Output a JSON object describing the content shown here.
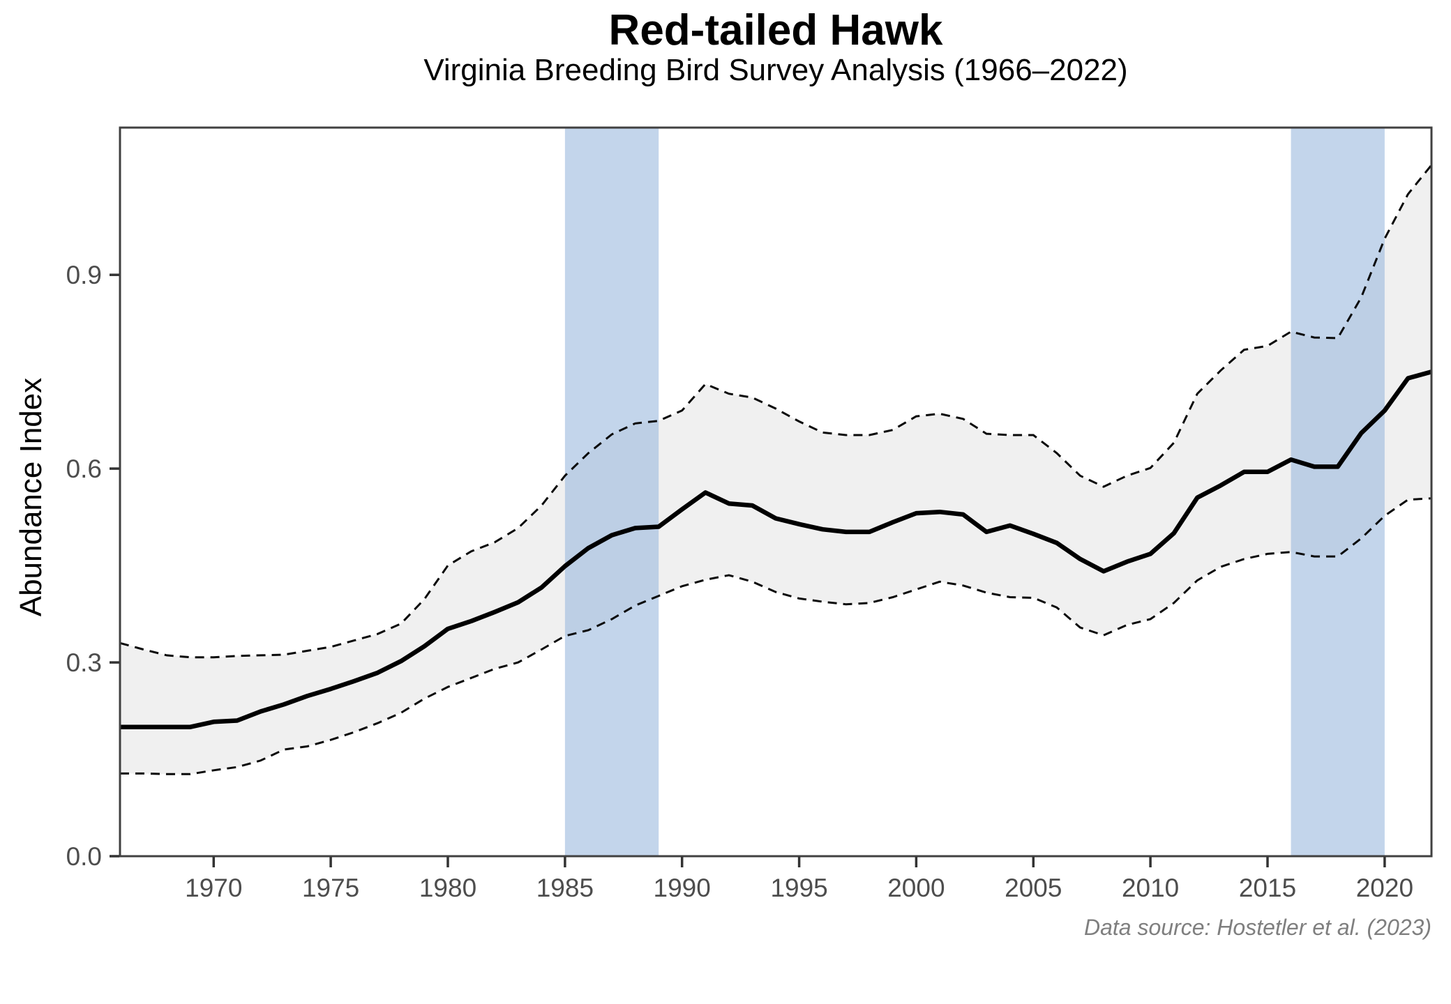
{
  "chart": {
    "title": "Red-tailed Hawk",
    "subtitle": "Virginia Breeding Bird Survey Analysis (1966–2022)",
    "y_axis_label": "Abundance Index",
    "caption": "Data source: Hostetler et al. (2023)"
  },
  "chart_data": {
    "type": "line",
    "title": "Red-tailed Hawk",
    "subtitle": "Virginia Breeding Bird Survey Analysis (1966–2022)",
    "xlabel": "",
    "ylabel": "Abundance Index",
    "xlim": [
      1966,
      2022
    ],
    "ylim": [
      0,
      1.128
    ],
    "grid": "off",
    "legend": "none",
    "x_ticks": [
      1970,
      1975,
      1980,
      1985,
      1990,
      1995,
      2000,
      2005,
      2010,
      2015,
      2020
    ],
    "y_ticks": [
      0.0,
      0.3,
      0.6,
      0.9
    ],
    "y_tick_labels": [
      "0.0",
      "0.3",
      "0.6",
      "0.9"
    ],
    "x": [
      1966,
      1967,
      1968,
      1969,
      1970,
      1971,
      1972,
      1973,
      1974,
      1975,
      1976,
      1977,
      1978,
      1979,
      1980,
      1981,
      1982,
      1983,
      1984,
      1985,
      1986,
      1987,
      1988,
      1989,
      1990,
      1991,
      1992,
      1993,
      1994,
      1995,
      1996,
      1997,
      1998,
      1999,
      2000,
      2001,
      2002,
      2003,
      2004,
      2005,
      2006,
      2007,
      2008,
      2009,
      2010,
      2011,
      2012,
      2013,
      2014,
      2015,
      2016,
      2017,
      2018,
      2019,
      2020,
      2021,
      2022
    ],
    "series": [
      {
        "name": "abundance_index_mean",
        "style": "solid",
        "values": [
          0.2,
          0.2,
          0.2,
          0.2,
          0.208,
          0.21,
          0.224,
          0.235,
          0.248,
          0.259,
          0.271,
          0.284,
          0.302,
          0.325,
          0.352,
          0.364,
          0.378,
          0.393,
          0.416,
          0.449,
          0.477,
          0.497,
          0.508,
          0.51,
          0.537,
          0.563,
          0.546,
          0.543,
          0.523,
          0.514,
          0.506,
          0.502,
          0.502,
          0.517,
          0.531,
          0.533,
          0.529,
          0.502,
          0.512,
          0.499,
          0.485,
          0.46,
          0.441,
          0.456,
          0.468,
          0.5,
          0.555,
          0.574,
          0.595,
          0.595,
          0.614,
          0.603,
          0.603,
          0.655,
          0.69,
          0.74,
          0.75
        ]
      },
      {
        "name": "ci_lower",
        "style": "dashed",
        "values": [
          0.128,
          0.128,
          0.127,
          0.127,
          0.133,
          0.138,
          0.148,
          0.165,
          0.17,
          0.18,
          0.192,
          0.206,
          0.222,
          0.244,
          0.262,
          0.276,
          0.29,
          0.3,
          0.32,
          0.341,
          0.35,
          0.367,
          0.388,
          0.403,
          0.418,
          0.428,
          0.435,
          0.425,
          0.409,
          0.399,
          0.394,
          0.39,
          0.392,
          0.401,
          0.413,
          0.425,
          0.419,
          0.408,
          0.401,
          0.4,
          0.385,
          0.354,
          0.342,
          0.358,
          0.367,
          0.392,
          0.427,
          0.448,
          0.46,
          0.468,
          0.471,
          0.464,
          0.464,
          0.492,
          0.527,
          0.552,
          0.554
        ]
      },
      {
        "name": "ci_upper",
        "style": "dashed",
        "values": [
          0.33,
          0.32,
          0.311,
          0.308,
          0.308,
          0.31,
          0.311,
          0.312,
          0.318,
          0.324,
          0.334,
          0.344,
          0.36,
          0.398,
          0.45,
          0.472,
          0.486,
          0.508,
          0.543,
          0.589,
          0.624,
          0.653,
          0.67,
          0.674,
          0.69,
          0.731,
          0.716,
          0.71,
          0.693,
          0.673,
          0.656,
          0.652,
          0.652,
          0.66,
          0.681,
          0.685,
          0.677,
          0.654,
          0.652,
          0.652,
          0.624,
          0.589,
          0.572,
          0.589,
          0.601,
          0.64,
          0.716,
          0.752,
          0.784,
          0.79,
          0.812,
          0.803,
          0.802,
          0.865,
          0.956,
          1.025,
          1.07
        ]
      }
    ],
    "highlight_bands": [
      {
        "x_start": 1985,
        "x_end": 1989
      },
      {
        "x_start": 2016,
        "x_end": 2020
      }
    ],
    "colors": {
      "line": "#000000",
      "ci_line": "#0a0a0a",
      "ribbon_fill": "#f0f0f0",
      "band_fill": "#9ebcdf",
      "band_alpha": 0.62,
      "panel_border": "#404040",
      "tick_mark": "#333333",
      "tick_label": "#4d4d4d",
      "caption_text": "#7f7f7f",
      "background": "#ffffff"
    }
  }
}
